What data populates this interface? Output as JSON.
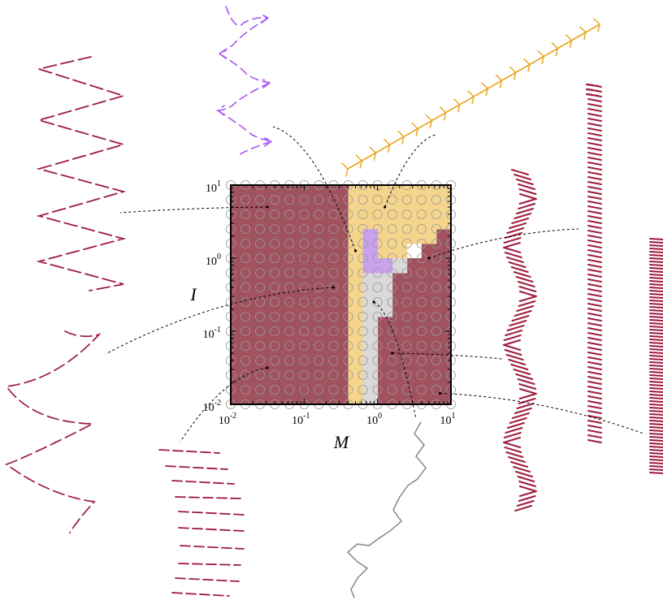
{
  "chart_data": {
    "type": "heatmap",
    "title": "",
    "xlabel": "M",
    "ylabel": "I",
    "x_scale": "log",
    "y_scale": "log",
    "xlim": [
      0.01,
      10
    ],
    "ylim": [
      0.01,
      10
    ],
    "x_ticks": [
      {
        "value": 0.01,
        "base": "10",
        "exp": "-2"
      },
      {
        "value": 0.1,
        "base": "10",
        "exp": "-1"
      },
      {
        "value": 1,
        "base": "10",
        "exp": "0"
      },
      {
        "value": 10,
        "base": "10",
        "exp": "1"
      }
    ],
    "y_ticks": [
      {
        "value": 0.01,
        "base": "10",
        "exp": "-2"
      },
      {
        "value": 0.1,
        "base": "10",
        "exp": "-1"
      },
      {
        "value": 1,
        "base": "10",
        "exp": "0"
      },
      {
        "value": 10,
        "base": "10",
        "exp": "1"
      }
    ],
    "grid": {
      "log_min": -2,
      "log_max": 1,
      "points_per_axis": 16,
      "marker": "open circle"
    },
    "regimes": [
      {
        "id": "maroon",
        "color": "#a0525e",
        "cells_log10": [
          {
            "M": [
              -2.0,
              -0.4
            ],
            "I": [
              -2.0,
              1.0
            ]
          },
          {
            "M": [
              -0.2,
              1.0
            ],
            "I": [
              -2.0,
              -0.8
            ]
          },
          {
            "M": [
              0.2,
              1.0
            ],
            "I": [
              -0.8,
              -0.2
            ]
          },
          {
            "M": [
              0.4,
              1.0
            ],
            "I": [
              -0.2,
              0.0
            ]
          },
          {
            "M": [
              0.6,
              1.0
            ],
            "I": [
              0.0,
              0.2
            ]
          },
          {
            "M": [
              0.8,
              1.0
            ],
            "I": [
              0.2,
              0.4
            ]
          }
        ]
      },
      {
        "id": "gold",
        "color": "#f5d58c",
        "cells_log10": [
          {
            "M": [
              -0.4,
              -0.2
            ],
            "I": [
              -2.0,
              1.0
            ]
          },
          {
            "M": [
              -0.2,
              1.0
            ],
            "I": [
              0.4,
              1.0
            ]
          },
          {
            "M": [
              0.0,
              0.4
            ],
            "I": [
              0.0,
              0.4
            ]
          },
          {
            "M": [
              0.4,
              0.8
            ],
            "I": [
              0.2,
              0.4
            ]
          }
        ]
      },
      {
        "id": "gray",
        "color": "#d9d9d9",
        "cells_log10": [
          {
            "M": [
              -0.2,
              0.0
            ],
            "I": [
              -2.0,
              0.0
            ]
          },
          {
            "M": [
              0.0,
              0.2
            ],
            "I": [
              -0.8,
              0.0
            ]
          },
          {
            "M": [
              0.2,
              0.4
            ],
            "I": [
              -0.2,
              0.0
            ]
          }
        ]
      },
      {
        "id": "purple",
        "color": "#c9a2ee",
        "cells_log10": [
          {
            "M": [
              -0.2,
              0.0
            ],
            "I": [
              -0.2,
              0.4
            ]
          },
          {
            "M": [
              0.0,
              0.2
            ],
            "I": [
              -0.2,
              0.0
            ]
          }
        ]
      }
    ],
    "insets": [
      {
        "id": "wide-zigzag",
        "style": "dashed-zigzag",
        "color": "#9e1b3c",
        "probe_log10": {
          "M": -1.5,
          "I": 0.7
        }
      },
      {
        "id": "loop-cusps",
        "style": "dashed-cusp-loops",
        "color": "#a855f7",
        "probe_log10": {
          "M": -0.3,
          "I": 0.1
        }
      },
      {
        "id": "chevron-diagonal",
        "style": "chevron-line",
        "color": "#e8a317",
        "probe_log10": {
          "M": 0.1,
          "I": 0.7
        }
      },
      {
        "id": "narrow-column",
        "style": "short-dashes",
        "color": "#9e1b3c",
        "probe_log10": {
          "M": 0.7,
          "I": 0.0
        }
      },
      {
        "id": "arc-cusps",
        "style": "dashed-cusp-arcs",
        "color": "#9e1b3c",
        "probe_log10": {
          "M": -0.6,
          "I": -0.4
        }
      },
      {
        "id": "stepped-lines",
        "style": "dashed-steps",
        "color": "#9e1b3c",
        "probe_log10": {
          "M": -1.5,
          "I": -1.5
        }
      },
      {
        "id": "random-walk",
        "style": "chevron-walk",
        "color": "#7f7f7f",
        "probe_log10": {
          "M": -0.05,
          "I": -0.6
        }
      },
      {
        "id": "wavy-column",
        "style": "wavy-dashes",
        "color": "#9e1b3c",
        "probe_log10": {
          "M": 0.2,
          "I": -1.3
        }
      },
      {
        "id": "tight-column",
        "style": "horizontal-dashes",
        "color": "#9e1b3c",
        "probe_log10": {
          "M": 0.85,
          "I": -1.85
        }
      }
    ]
  }
}
